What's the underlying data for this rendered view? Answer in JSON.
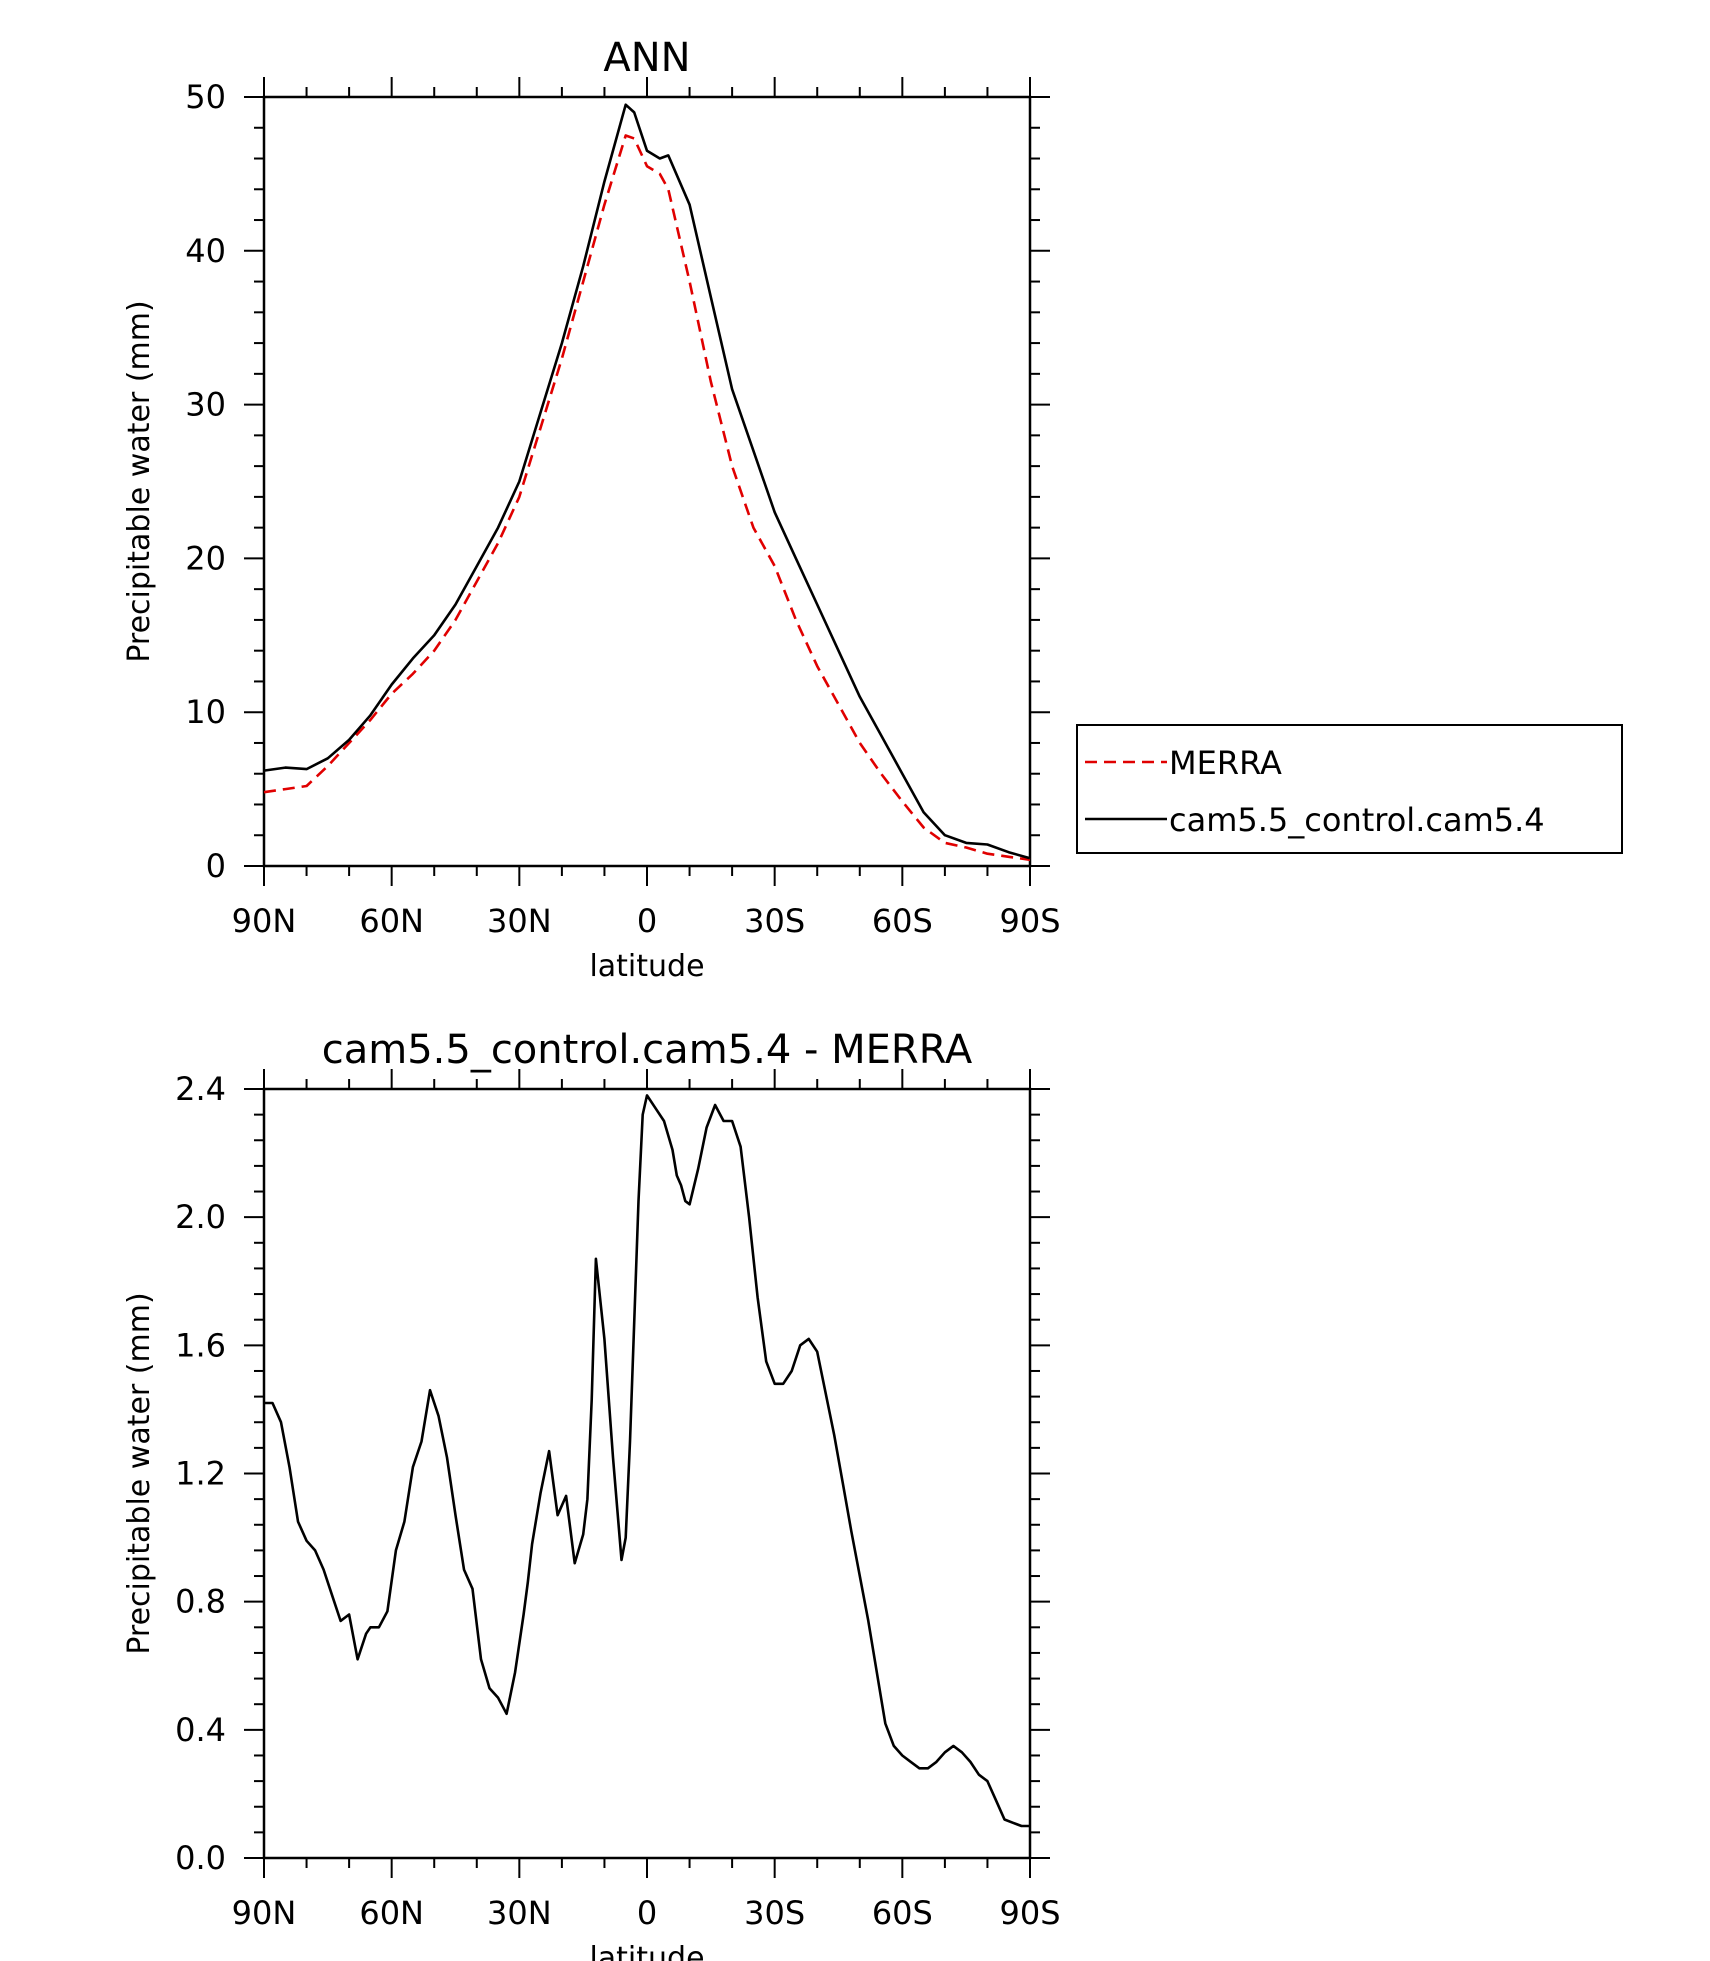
{
  "chart_data": [
    {
      "type": "line",
      "title": "ANN",
      "xlabel": "latitude",
      "ylabel": "Precipitable water (mm)",
      "xticks": [
        "90N",
        "60N",
        "30N",
        "0",
        "30S",
        "60S",
        "90S"
      ],
      "xtick_values": [
        90,
        60,
        30,
        0,
        -30,
        -60,
        -90
      ],
      "yticks": [
        "0",
        "10",
        "20",
        "30",
        "40",
        "50"
      ],
      "ytick_values": [
        0,
        10,
        20,
        30,
        40,
        50
      ],
      "xlim": [
        90,
        -90
      ],
      "ylim": [
        0,
        50
      ],
      "legend_placement": "right",
      "series": [
        {
          "name": "MERRA",
          "color": "#e00000",
          "style": "dashed",
          "x": [
            90,
            85,
            80,
            75,
            70,
            65,
            60,
            55,
            50,
            45,
            40,
            35,
            30,
            25,
            20,
            15,
            10,
            5,
            3,
            0,
            -3,
            -5,
            -10,
            -15,
            -20,
            -25,
            -30,
            -35,
            -40,
            -45,
            -50,
            -55,
            -60,
            -65,
            -70,
            -75,
            -80,
            -85,
            -90
          ],
          "y": [
            4.8,
            5.0,
            5.2,
            6.5,
            8.0,
            9.5,
            11.2,
            12.5,
            14.0,
            16.0,
            18.5,
            21.0,
            24.0,
            28.5,
            33.0,
            38.0,
            43.0,
            47.5,
            47.3,
            45.5,
            45.0,
            44.0,
            38.0,
            31.5,
            26.0,
            22.0,
            19.5,
            16.0,
            13.0,
            10.5,
            8.0,
            6.0,
            4.2,
            2.5,
            1.5,
            1.2,
            0.8,
            0.6,
            0.4
          ]
        },
        {
          "name": "cam5.5_control.cam5.4",
          "color": "#000000",
          "style": "solid",
          "x": [
            90,
            85,
            80,
            75,
            70,
            65,
            60,
            55,
            50,
            45,
            40,
            35,
            30,
            25,
            20,
            15,
            10,
            5,
            3,
            0,
            -3,
            -5,
            -10,
            -15,
            -20,
            -25,
            -30,
            -35,
            -40,
            -45,
            -50,
            -55,
            -60,
            -65,
            -70,
            -75,
            -80,
            -85,
            -90
          ],
          "y": [
            6.2,
            6.4,
            6.3,
            7.0,
            8.2,
            9.8,
            11.8,
            13.5,
            15.0,
            17.0,
            19.5,
            22.0,
            25.0,
            29.5,
            34.0,
            39.0,
            44.5,
            49.5,
            49.0,
            46.5,
            46.0,
            46.2,
            43.0,
            37.0,
            31.0,
            27.0,
            23.0,
            20.0,
            17.0,
            14.0,
            11.0,
            8.5,
            6.0,
            3.5,
            2.0,
            1.5,
            1.4,
            0.9,
            0.5
          ]
        }
      ]
    },
    {
      "type": "line",
      "title": "cam5.5_control.cam5.4 - MERRA",
      "xlabel": "latitude",
      "ylabel": "Precipitable water (mm)",
      "xticks": [
        "90N",
        "60N",
        "30N",
        "0",
        "30S",
        "60S",
        "90S"
      ],
      "xtick_values": [
        90,
        60,
        30,
        0,
        -30,
        -60,
        -90
      ],
      "yticks": [
        "0.0",
        "0.4",
        "0.8",
        "1.2",
        "1.6",
        "2.0",
        "2.4"
      ],
      "ytick_values": [
        0,
        0.4,
        0.8,
        1.2,
        1.6,
        2.0,
        2.4
      ],
      "xlim": [
        90,
        -90
      ],
      "ylim": [
        0,
        2.4
      ],
      "series": [
        {
          "color": "#000000",
          "style": "solid",
          "x": [
            90,
            88,
            86,
            84,
            82,
            80,
            78,
            76,
            74,
            72,
            70,
            68,
            66,
            65,
            63,
            61,
            59,
            57,
            55,
            53,
            51,
            49,
            47,
            45,
            43,
            41,
            39,
            37,
            35,
            33,
            31,
            29,
            28,
            27,
            25,
            23,
            21,
            19,
            17,
            15,
            14,
            13,
            12,
            10,
            8,
            6,
            5,
            4,
            2,
            1,
            0,
            -2,
            -4,
            -6,
            -7,
            -8,
            -9,
            -10,
            -12,
            -14,
            -16,
            -18,
            -20,
            -22,
            -24,
            -26,
            -28,
            -30,
            -32,
            -34,
            -36,
            -38,
            -40,
            -42,
            -44,
            -46,
            -48,
            -50,
            -52,
            -54,
            -56,
            -58,
            -60,
            -62,
            -64,
            -66,
            -68,
            -70,
            -72,
            -74,
            -76,
            -78,
            -80,
            -82,
            -84,
            -86,
            -88,
            -90
          ],
          "y": [
            1.42,
            1.42,
            1.36,
            1.22,
            1.05,
            0.99,
            0.96,
            0.9,
            0.82,
            0.74,
            0.76,
            0.62,
            0.7,
            0.72,
            0.72,
            0.77,
            0.96,
            1.05,
            1.22,
            1.3,
            1.46,
            1.38,
            1.25,
            1.07,
            0.9,
            0.84,
            0.62,
            0.53,
            0.5,
            0.45,
            0.58,
            0.76,
            0.86,
            0.98,
            1.14,
            1.27,
            1.07,
            1.13,
            0.92,
            1.01,
            1.12,
            1.43,
            1.87,
            1.62,
            1.25,
            0.93,
            1.0,
            1.3,
            2.05,
            2.32,
            2.38,
            2.34,
            2.3,
            2.21,
            2.13,
            2.1,
            2.05,
            2.04,
            2.15,
            2.28,
            2.35,
            2.3,
            2.3,
            2.22,
            2.0,
            1.75,
            1.55,
            1.48,
            1.48,
            1.52,
            1.6,
            1.62,
            1.58,
            1.45,
            1.32,
            1.17,
            1.02,
            0.88,
            0.74,
            0.58,
            0.42,
            0.35,
            0.32,
            0.3,
            0.28,
            0.28,
            0.3,
            0.33,
            0.35,
            0.33,
            0.3,
            0.26,
            0.24,
            0.18,
            0.12,
            0.11,
            0.1,
            0.1
          ]
        }
      ]
    }
  ]
}
